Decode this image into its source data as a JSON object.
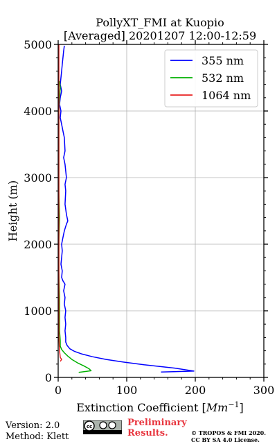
{
  "chart_data": {
    "type": "line",
    "title": "PollyXT_FMI at Kuopio",
    "subtitle": "[Averaged] 20201207 12:00-12:59",
    "xlabel": "Extinction Coefficient [Mm⁻¹]",
    "ylabel": "Height (m)",
    "xlim": [
      0,
      300
    ],
    "ylim": [
      0,
      5000
    ],
    "xticks": [
      0,
      100,
      200,
      300
    ],
    "yticks": [
      0,
      1000,
      2000,
      3000,
      4000,
      5000
    ],
    "grid": true,
    "legend": "top-right",
    "series": [
      {
        "name": "355 nm",
        "color": "#0000ff",
        "points": [
          [
            150,
            80
          ],
          [
            198,
            95
          ],
          [
            170,
            140
          ],
          [
            125,
            190
          ],
          [
            95,
            230
          ],
          [
            70,
            270
          ],
          [
            50,
            310
          ],
          [
            35,
            350
          ],
          [
            24,
            390
          ],
          [
            17,
            430
          ],
          [
            13,
            480
          ],
          [
            11,
            530
          ],
          [
            11,
            600
          ],
          [
            10,
            700
          ],
          [
            11,
            800
          ],
          [
            10,
            900
          ],
          [
            11,
            1000
          ],
          [
            9,
            1100
          ],
          [
            10,
            1200
          ],
          [
            8,
            1300
          ],
          [
            10,
            1400
          ],
          [
            7,
            1450
          ],
          [
            5,
            1500
          ],
          [
            6,
            1600
          ],
          [
            4,
            1700
          ],
          [
            5,
            1800
          ],
          [
            6,
            1900
          ],
          [
            5,
            2000
          ],
          [
            7,
            2100
          ],
          [
            9,
            2200
          ],
          [
            12,
            2300
          ],
          [
            14,
            2350
          ],
          [
            12,
            2450
          ],
          [
            10,
            2600
          ],
          [
            11,
            2800
          ],
          [
            10,
            2900
          ],
          [
            12,
            3000
          ],
          [
            10,
            3200
          ],
          [
            8,
            3300
          ],
          [
            10,
            3400
          ],
          [
            9,
            3600
          ],
          [
            7,
            3700
          ],
          [
            5,
            3800
          ],
          [
            3,
            3900
          ],
          [
            4,
            4000
          ],
          [
            2,
            4100
          ],
          [
            3,
            4200
          ],
          [
            5,
            4300
          ],
          [
            3,
            4400
          ],
          [
            4,
            4500
          ],
          [
            5,
            4600
          ],
          [
            6,
            4700
          ],
          [
            7,
            4800
          ],
          [
            8,
            4900
          ],
          [
            9,
            4980
          ]
        ]
      },
      {
        "name": "532 nm",
        "color": "#00b000",
        "points": [
          [
            30,
            75
          ],
          [
            48,
            100
          ],
          [
            45,
            130
          ],
          [
            38,
            170
          ],
          [
            28,
            220
          ],
          [
            20,
            270
          ],
          [
            14,
            320
          ],
          [
            9,
            370
          ],
          [
            5,
            420
          ],
          [
            3,
            470
          ],
          [
            3,
            550
          ],
          [
            2,
            700
          ],
          [
            2,
            900
          ],
          [
            2,
            1200
          ],
          [
            1,
            1600
          ],
          [
            1,
            2000
          ],
          [
            2,
            2400
          ],
          [
            1,
            2800
          ],
          [
            1,
            3200
          ],
          [
            1,
            3600
          ],
          [
            1,
            4000
          ],
          [
            2,
            4200
          ],
          [
            3,
            4350
          ],
          [
            2,
            4450
          ]
        ]
      },
      {
        "name": "1064 nm",
        "color": "#e82020",
        "points": [
          [
            3,
            240
          ],
          [
            5,
            270
          ],
          [
            3,
            300
          ],
          [
            2,
            400
          ],
          [
            1,
            600
          ],
          [
            1,
            1000
          ],
          [
            1,
            1500
          ],
          [
            1,
            2000
          ],
          [
            1,
            2500
          ],
          [
            1,
            3000
          ],
          [
            1,
            3500
          ],
          [
            1,
            4000
          ],
          [
            1,
            4500
          ],
          [
            1,
            5000
          ]
        ]
      }
    ]
  },
  "footer": {
    "version": "Version: 2.0",
    "method": "Method: Klett",
    "preliminary_line1": "Preliminary",
    "preliminary_line2": "Results.",
    "copyright_line1": "© TROPOS & FMI 2020.",
    "copyright_line2": "CC BY SA 4.0 License."
  }
}
